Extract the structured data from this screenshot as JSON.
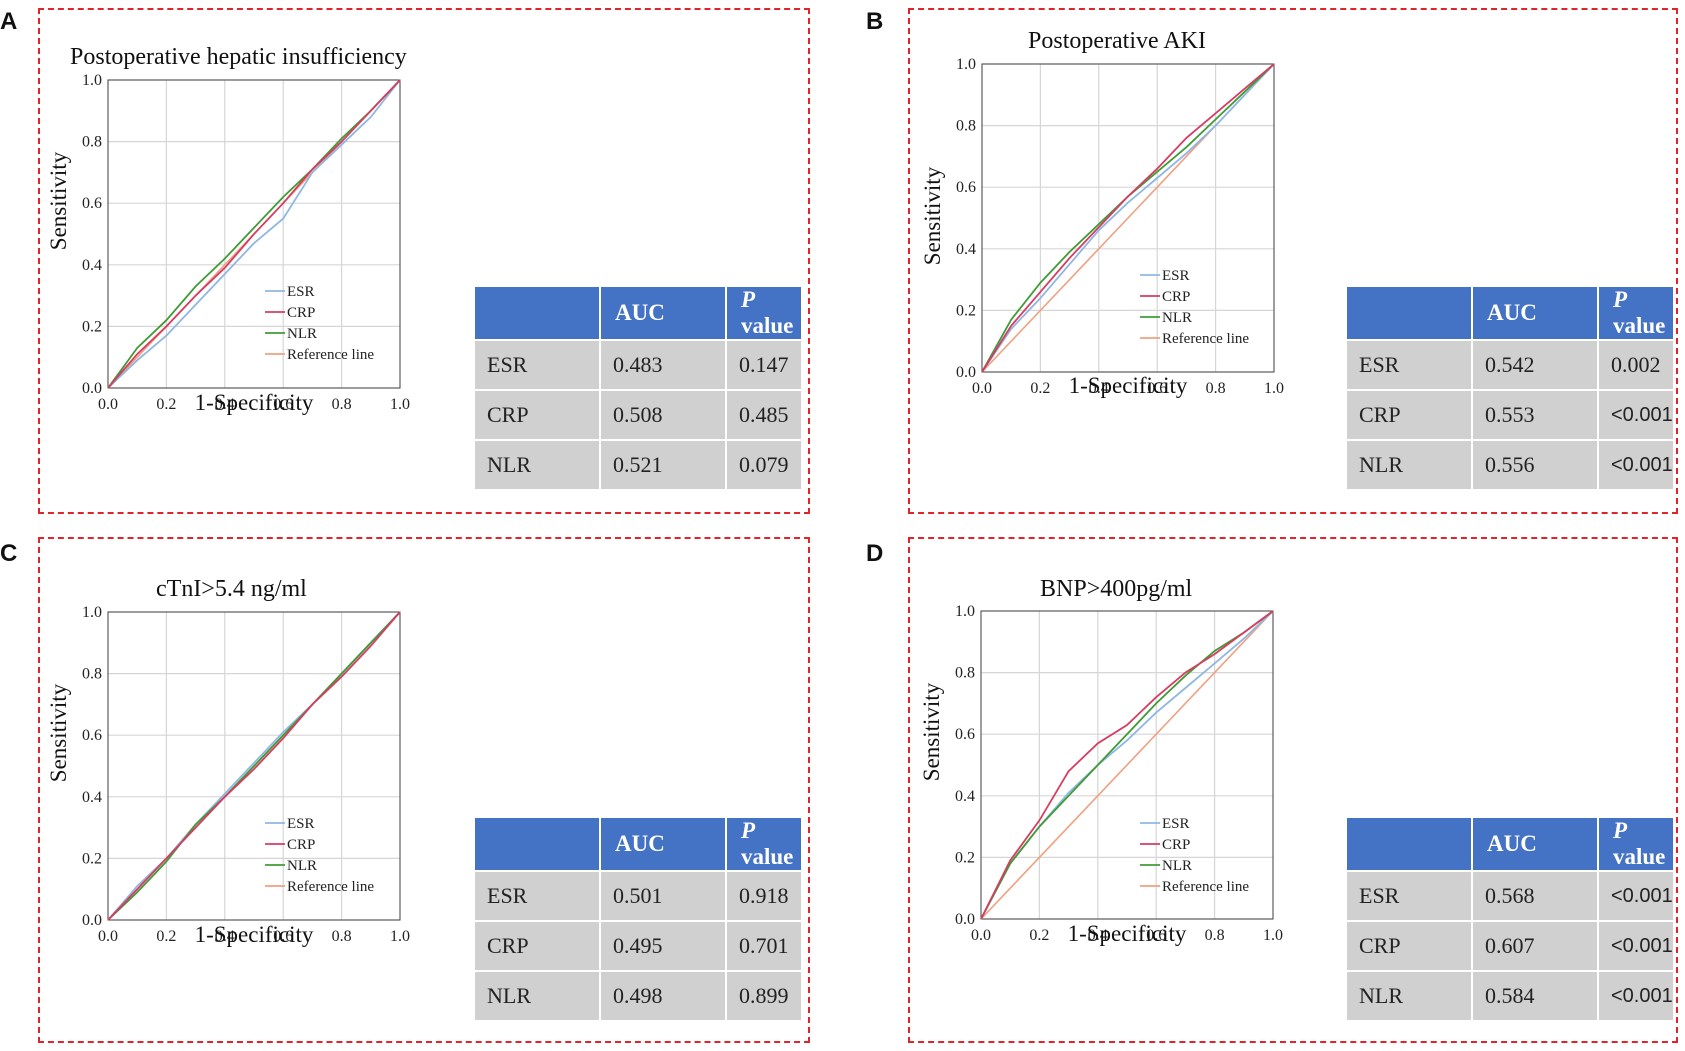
{
  "colors": {
    "ESR": "#8fb7e3",
    "CRP": "#d73c62",
    "NLR": "#3f9b35",
    "Reference line": "#f0a080",
    "grid": "#d6d6d6",
    "border": "#e0242a",
    "header": "#4472c4",
    "cell": "#d0d0d0"
  },
  "panels": [
    {
      "letter": "A",
      "title": "Postoperative hepatic insufficiency",
      "xlabel": "1-Specificity",
      "ylabel": "Sensitivity",
      "ticks": [
        "0.0",
        "0.2",
        "0.4",
        "0.6",
        "0.8",
        "1.0"
      ],
      "legend": [
        "ESR",
        "CRP",
        "NLR",
        "Reference line"
      ],
      "table": {
        "headers": [
          "",
          "AUC",
          "P",
          "value"
        ],
        "rows": [
          {
            "name": "ESR",
            "auc": "0.483",
            "p": "0.147"
          },
          {
            "name": "CRP",
            "auc": "0.508",
            "p": "0.485"
          },
          {
            "name": "NLR",
            "auc": "0.521",
            "p": "0.079"
          }
        ]
      }
    },
    {
      "letter": "B",
      "title": "Postoperative AKI",
      "xlabel": "1-Specificity",
      "ylabel": "Sensitivity",
      "ticks": [
        "0.0",
        "0.2",
        "0.4",
        "0.6",
        "0.8",
        "1.0"
      ],
      "legend": [
        "ESR",
        "CRP",
        "NLR",
        "Reference line"
      ],
      "table": {
        "headers": [
          "",
          "AUC",
          "P",
          "value"
        ],
        "rows": [
          {
            "name": "ESR",
            "auc": "0.542",
            "p": "0.002"
          },
          {
            "name": "CRP",
            "auc": "0.553",
            "p": "<0.001"
          },
          {
            "name": "NLR",
            "auc": "0.556",
            "p": "<0.001"
          }
        ]
      }
    },
    {
      "letter": "C",
      "title": "cTnI>5.4 ng/ml",
      "xlabel": "1-Specificity",
      "ylabel": "Sensitivity",
      "ticks": [
        "0.0",
        "0.2",
        "0.4",
        "0.6",
        "0.8",
        "1.0"
      ],
      "legend": [
        "ESR",
        "CRP",
        "NLR",
        "Reference line"
      ],
      "table": {
        "headers": [
          "",
          "AUC",
          "P",
          "value"
        ],
        "rows": [
          {
            "name": "ESR",
            "auc": "0.501",
            "p": "0.918"
          },
          {
            "name": "CRP",
            "auc": "0.495",
            "p": "0.701"
          },
          {
            "name": "NLR",
            "auc": "0.498",
            "p": "0.899"
          }
        ]
      }
    },
    {
      "letter": "D",
      "title": "BNP>400pg/ml",
      "xlabel": "1-Specificity",
      "ylabel": "Sensitivity",
      "ticks": [
        "0.0",
        "0.2",
        "0.4",
        "0.6",
        "0.8",
        "1.0"
      ],
      "legend": [
        "ESR",
        "CRP",
        "NLR",
        "Reference line"
      ],
      "table": {
        "headers": [
          "",
          "AUC",
          "P",
          "value"
        ],
        "rows": [
          {
            "name": "ESR",
            "auc": "0.568",
            "p": "<0.001"
          },
          {
            "name": "CRP",
            "auc": "0.607",
            "p": "<0.001"
          },
          {
            "name": "NLR",
            "auc": "0.584",
            "p": "<0.001"
          }
        ]
      }
    }
  ],
  "chart_data": [
    {
      "type": "line",
      "title": "Postoperative hepatic insufficiency",
      "xlabel": "1-Specificity",
      "ylabel": "Sensitivity",
      "xlim": [
        0,
        1
      ],
      "ylim": [
        0,
        1
      ],
      "series": [
        {
          "name": "ESR",
          "x": [
            0,
            0.1,
            0.2,
            0.3,
            0.4,
            0.5,
            0.6,
            0.7,
            0.8,
            0.9,
            1
          ],
          "y": [
            0,
            0.09,
            0.17,
            0.27,
            0.37,
            0.47,
            0.55,
            0.7,
            0.79,
            0.88,
            1
          ]
        },
        {
          "name": "CRP",
          "x": [
            0,
            0.1,
            0.2,
            0.3,
            0.4,
            0.5,
            0.6,
            0.7,
            0.8,
            0.9,
            1
          ],
          "y": [
            0,
            0.11,
            0.2,
            0.3,
            0.39,
            0.5,
            0.6,
            0.71,
            0.8,
            0.9,
            1
          ]
        },
        {
          "name": "NLR",
          "x": [
            0,
            0.1,
            0.2,
            0.3,
            0.4,
            0.5,
            0.6,
            0.7,
            0.8,
            0.9,
            1
          ],
          "y": [
            0,
            0.13,
            0.22,
            0.33,
            0.42,
            0.52,
            0.62,
            0.71,
            0.81,
            0.9,
            1
          ]
        },
        {
          "name": "Reference line",
          "x": [
            0,
            1
          ],
          "y": [
            0,
            1
          ]
        }
      ]
    },
    {
      "type": "line",
      "title": "Postoperative AKI",
      "xlabel": "1-Specificity",
      "ylabel": "Sensitivity",
      "xlim": [
        0,
        1
      ],
      "ylim": [
        0,
        1
      ],
      "series": [
        {
          "name": "ESR",
          "x": [
            0,
            0.1,
            0.2,
            0.3,
            0.4,
            0.5,
            0.6,
            0.7,
            0.8,
            0.9,
            1
          ],
          "y": [
            0,
            0.14,
            0.24,
            0.35,
            0.46,
            0.55,
            0.63,
            0.71,
            0.8,
            0.9,
            1
          ]
        },
        {
          "name": "CRP",
          "x": [
            0,
            0.1,
            0.2,
            0.3,
            0.4,
            0.5,
            0.6,
            0.7,
            0.8,
            0.9,
            1
          ],
          "y": [
            0,
            0.15,
            0.26,
            0.37,
            0.47,
            0.57,
            0.66,
            0.76,
            0.84,
            0.92,
            1
          ]
        },
        {
          "name": "NLR",
          "x": [
            0,
            0.1,
            0.2,
            0.3,
            0.4,
            0.5,
            0.6,
            0.7,
            0.8,
            0.9,
            1
          ],
          "y": [
            0,
            0.17,
            0.29,
            0.39,
            0.48,
            0.57,
            0.65,
            0.73,
            0.82,
            0.91,
            1
          ]
        },
        {
          "name": "Reference line",
          "x": [
            0,
            1
          ],
          "y": [
            0,
            1
          ]
        }
      ]
    },
    {
      "type": "line",
      "title": "cTnI>5.4 ng/ml",
      "xlabel": "1-Specificity",
      "ylabel": "Sensitivity",
      "xlim": [
        0,
        1
      ],
      "ylim": [
        0,
        1
      ],
      "series": [
        {
          "name": "ESR",
          "x": [
            0,
            0.1,
            0.2,
            0.3,
            0.4,
            0.5,
            0.6,
            0.7,
            0.8,
            0.9,
            1
          ],
          "y": [
            0,
            0.11,
            0.2,
            0.31,
            0.41,
            0.51,
            0.61,
            0.7,
            0.8,
            0.9,
            1
          ]
        },
        {
          "name": "CRP",
          "x": [
            0,
            0.1,
            0.2,
            0.3,
            0.4,
            0.5,
            0.6,
            0.7,
            0.8,
            0.9,
            1
          ],
          "y": [
            0,
            0.1,
            0.2,
            0.3,
            0.4,
            0.49,
            0.59,
            0.7,
            0.79,
            0.89,
            1
          ]
        },
        {
          "name": "NLR",
          "x": [
            0,
            0.1,
            0.2,
            0.3,
            0.4,
            0.5,
            0.6,
            0.7,
            0.8,
            0.9,
            1
          ],
          "y": [
            0,
            0.09,
            0.19,
            0.31,
            0.4,
            0.5,
            0.6,
            0.7,
            0.8,
            0.9,
            1
          ]
        },
        {
          "name": "Reference line",
          "x": [
            0,
            1
          ],
          "y": [
            0,
            1
          ]
        }
      ]
    },
    {
      "type": "line",
      "title": "BNP>400pg/ml",
      "xlabel": "1-Specificity",
      "ylabel": "Sensitivity",
      "xlim": [
        0,
        1
      ],
      "ylim": [
        0,
        1
      ],
      "series": [
        {
          "name": "ESR",
          "x": [
            0,
            0.1,
            0.2,
            0.3,
            0.4,
            0.5,
            0.6,
            0.7,
            0.8,
            0.9,
            1
          ],
          "y": [
            0,
            0.18,
            0.3,
            0.41,
            0.5,
            0.58,
            0.67,
            0.75,
            0.83,
            0.91,
            1
          ]
        },
        {
          "name": "CRP",
          "x": [
            0,
            0.1,
            0.2,
            0.3,
            0.4,
            0.5,
            0.6,
            0.7,
            0.8,
            0.9,
            1
          ],
          "y": [
            0,
            0.19,
            0.32,
            0.48,
            0.57,
            0.63,
            0.72,
            0.8,
            0.86,
            0.93,
            1
          ]
        },
        {
          "name": "NLR",
          "x": [
            0,
            0.1,
            0.2,
            0.3,
            0.4,
            0.5,
            0.6,
            0.7,
            0.8,
            0.9,
            1
          ],
          "y": [
            0,
            0.18,
            0.3,
            0.4,
            0.5,
            0.6,
            0.7,
            0.79,
            0.87,
            0.93,
            1
          ]
        },
        {
          "name": "Reference line",
          "x": [
            0,
            1
          ],
          "y": [
            0,
            1
          ]
        }
      ]
    }
  ]
}
